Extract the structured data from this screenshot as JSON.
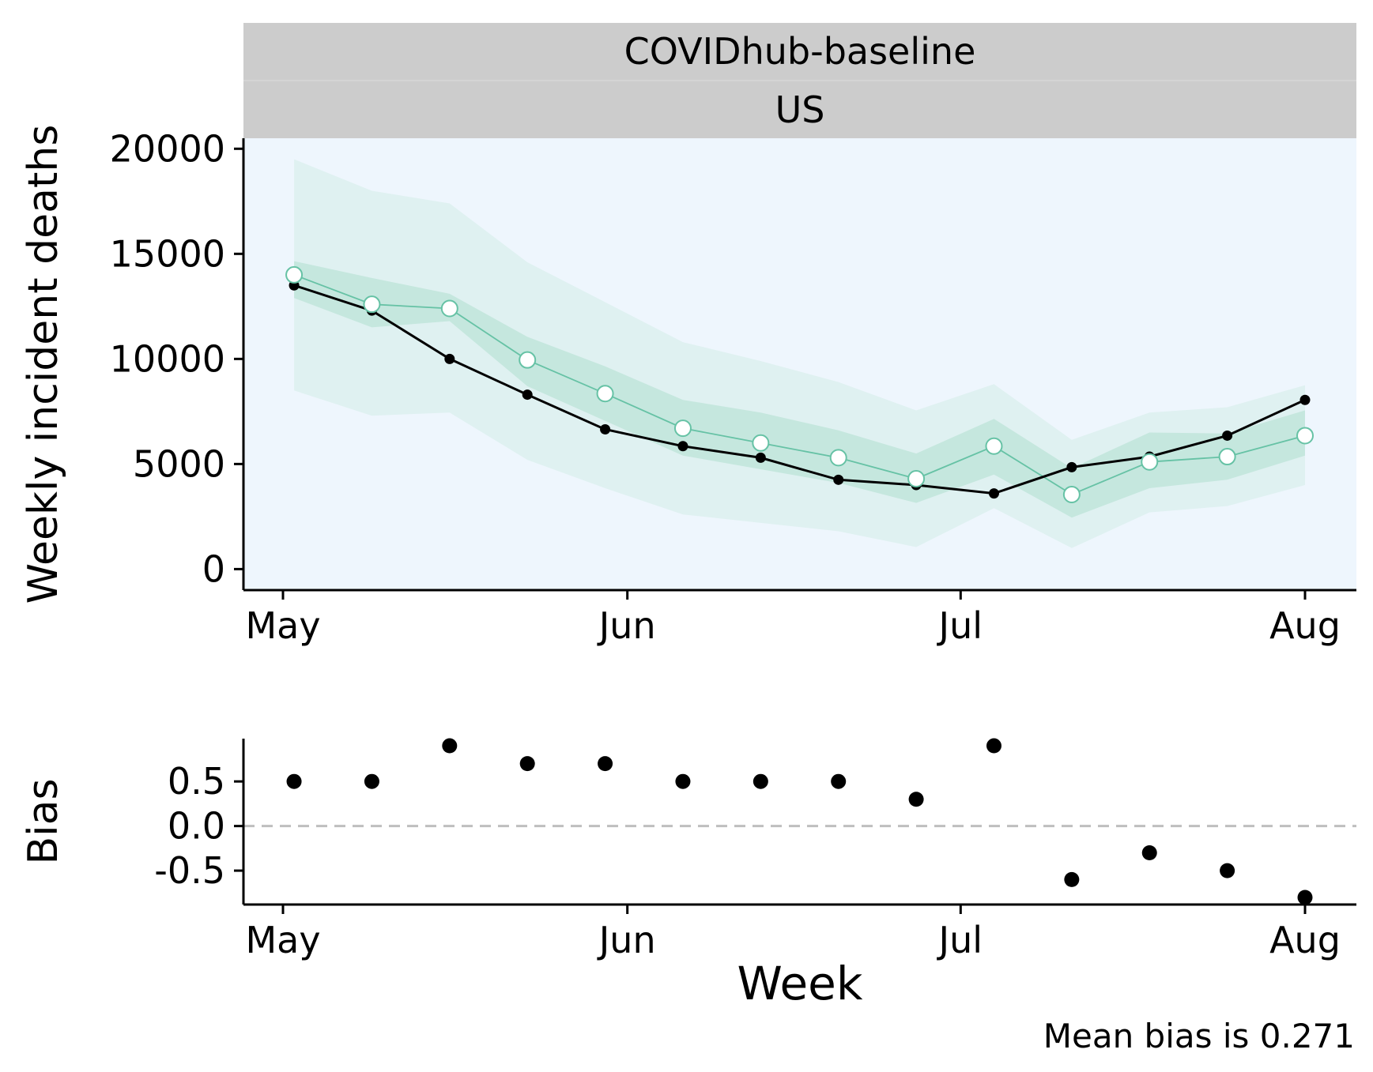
{
  "strip": {
    "model": "COVIDhub-baseline",
    "location": "US"
  },
  "chart_data": [
    {
      "type": "line",
      "title": "",
      "xlabel": "",
      "ylabel": "Weekly incident deaths",
      "ylim": [
        -1000,
        20500
      ],
      "yticks": [
        0,
        5000,
        10000,
        15000,
        20000
      ],
      "xticks": [
        {
          "date": "2020-05-01",
          "label": "May"
        },
        {
          "date": "2020-06-01",
          "label": "Jun"
        },
        {
          "date": "2020-07-01",
          "label": "Jul"
        },
        {
          "date": "2020-08-01",
          "label": "Aug"
        }
      ],
      "x": [
        "2020-05-02",
        "2020-05-09",
        "2020-05-16",
        "2020-05-23",
        "2020-05-30",
        "2020-06-06",
        "2020-06-13",
        "2020-06-20",
        "2020-06-27",
        "2020-07-04",
        "2020-07-11",
        "2020-07-18",
        "2020-07-25",
        "2020-08-01"
      ],
      "background": "#eef6fd",
      "colors": {
        "forecast": "#66c2a5",
        "observed": "#000000",
        "inner_band": "#c5e7de",
        "outer_band": "#dff1f1"
      },
      "series": [
        {
          "role": "observed",
          "values": [
            13500,
            12300,
            10000,
            8300,
            6650,
            5850,
            5300,
            4250,
            4000,
            3600,
            4850,
            5350,
            6350,
            8050
          ]
        },
        {
          "role": "forecast-median",
          "values": [
            14000,
            12600,
            12400,
            9950,
            8350,
            6700,
            6000,
            5300,
            4300,
            5850,
            3550,
            5100,
            5350,
            6350
          ]
        }
      ],
      "intervals": [
        {
          "level": "outer",
          "lower": [
            8500,
            7300,
            7450,
            5200,
            3850,
            2600,
            2200,
            1800,
            1050,
            2900,
            1000,
            2700,
            3000,
            4000
          ],
          "upper": [
            19500,
            18000,
            17400,
            14600,
            12700,
            10800,
            9900,
            8900,
            7550,
            8800,
            6150,
            7450,
            7700,
            8750
          ]
        },
        {
          "level": "inner",
          "lower": [
            12900,
            11500,
            11800,
            8700,
            7050,
            5400,
            4750,
            4100,
            3150,
            4500,
            2450,
            3850,
            4250,
            5400
          ]
        },
        {
          "level": "inner-upper",
          "upper": [
            14650,
            13850,
            13100,
            11050,
            9650,
            8050,
            7450,
            6600,
            5500,
            7150,
            4800,
            6500,
            6450,
            7550
          ]
        }
      ]
    },
    {
      "type": "scatter",
      "title": "",
      "xlabel": "Week",
      "ylabel": "Bias",
      "ylim": [
        -0.88,
        0.98
      ],
      "yticks": [
        {
          "value": 0.5,
          "label": "0.5"
        },
        {
          "value": 0.0,
          "label": "0.0"
        },
        {
          "value": -0.5,
          "label": "-0.5"
        }
      ],
      "xticks": [
        {
          "date": "2020-05-01",
          "label": "May"
        },
        {
          "date": "2020-06-01",
          "label": "Jun"
        },
        {
          "date": "2020-07-01",
          "label": "Jul"
        },
        {
          "date": "2020-08-01",
          "label": "Aug"
        }
      ],
      "x": [
        "2020-05-02",
        "2020-05-09",
        "2020-05-16",
        "2020-05-23",
        "2020-05-30",
        "2020-06-06",
        "2020-06-13",
        "2020-06-20",
        "2020-06-27",
        "2020-07-04",
        "2020-07-11",
        "2020-07-18",
        "2020-07-25",
        "2020-08-01"
      ],
      "values": [
        0.5,
        0.5,
        0.9,
        0.7,
        0.7,
        0.5,
        0.5,
        0.5,
        0.3,
        0.9,
        -0.6,
        -0.3,
        -0.5,
        -0.8
      ],
      "reference_line": 0.0,
      "reference_color": "#bebebe",
      "annotation": "Mean bias is 0.271"
    }
  ]
}
